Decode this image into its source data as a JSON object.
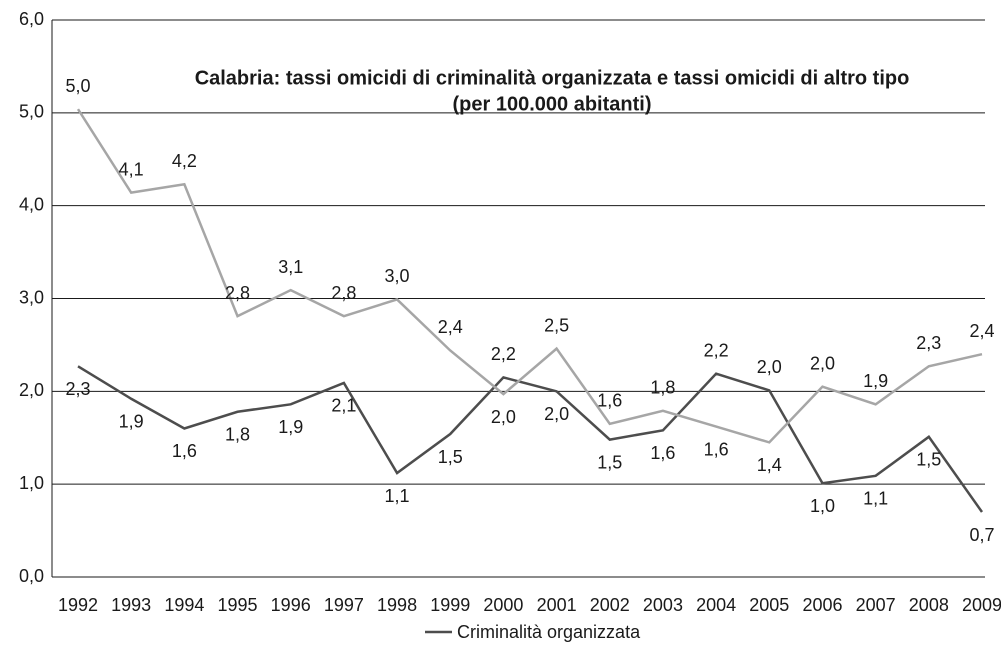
{
  "chart_data": {
    "type": "line",
    "title": [
      "Calabria: tassi omicidi di criminalità organizzata e tassi omicidi di altro tipo",
      "(per 100.000 abitanti)"
    ],
    "categories": [
      "1992",
      "1993",
      "1994",
      "1995",
      "1996",
      "1997",
      "1998",
      "1999",
      "2000",
      "2001",
      "2002",
      "2003",
      "2004",
      "2005",
      "2006",
      "2007",
      "2008",
      "2009"
    ],
    "series": [
      {
        "name": "Criminalità organizzata",
        "color": "#4d4d4d",
        "values": [
          2.27,
          1.92,
          1.6,
          1.78,
          1.86,
          2.09,
          1.12,
          1.54,
          2.15,
          2.0,
          1.48,
          1.58,
          2.19,
          2.01,
          1.01,
          1.09,
          1.51,
          0.7
        ],
        "value_labels": [
          "2,3",
          "1,9",
          "1,6",
          "1,8",
          "1,9",
          "2,1",
          "1,1",
          "1,5",
          "2,2",
          "2,0",
          "1,5",
          "1,6",
          "2,2",
          "2,0",
          "1,0",
          "1,1",
          "1,5",
          "0,7"
        ]
      },
      {
        "color": "#a6a6a6",
        "values": [
          5.04,
          4.14,
          4.23,
          2.81,
          3.09,
          2.81,
          2.99,
          2.44,
          1.97,
          2.46,
          1.65,
          1.79,
          1.62,
          1.45,
          2.05,
          1.86,
          2.27,
          2.4
        ],
        "value_labels": [
          "5,0",
          "4,1",
          "4,2",
          "2,8",
          "3,1",
          "2,8",
          "3,0",
          "2,4",
          "2,0",
          "2,5",
          "1,6",
          "1,8",
          "1,6",
          "1,4",
          "2,0",
          "1,9",
          "2,3",
          "2,4"
        ]
      }
    ],
    "ylim": [
      0,
      6
    ],
    "yticks": [
      {
        "value": 0,
        "label": "0,0"
      },
      {
        "value": 1,
        "label": "1,0"
      },
      {
        "value": 2,
        "label": "2,0"
      },
      {
        "value": 3,
        "label": "3,0"
      },
      {
        "value": 4,
        "label": "4,0"
      },
      {
        "value": 5,
        "label": "5,0"
      },
      {
        "value": 6,
        "label": "6,0"
      }
    ],
    "grid": true
  }
}
